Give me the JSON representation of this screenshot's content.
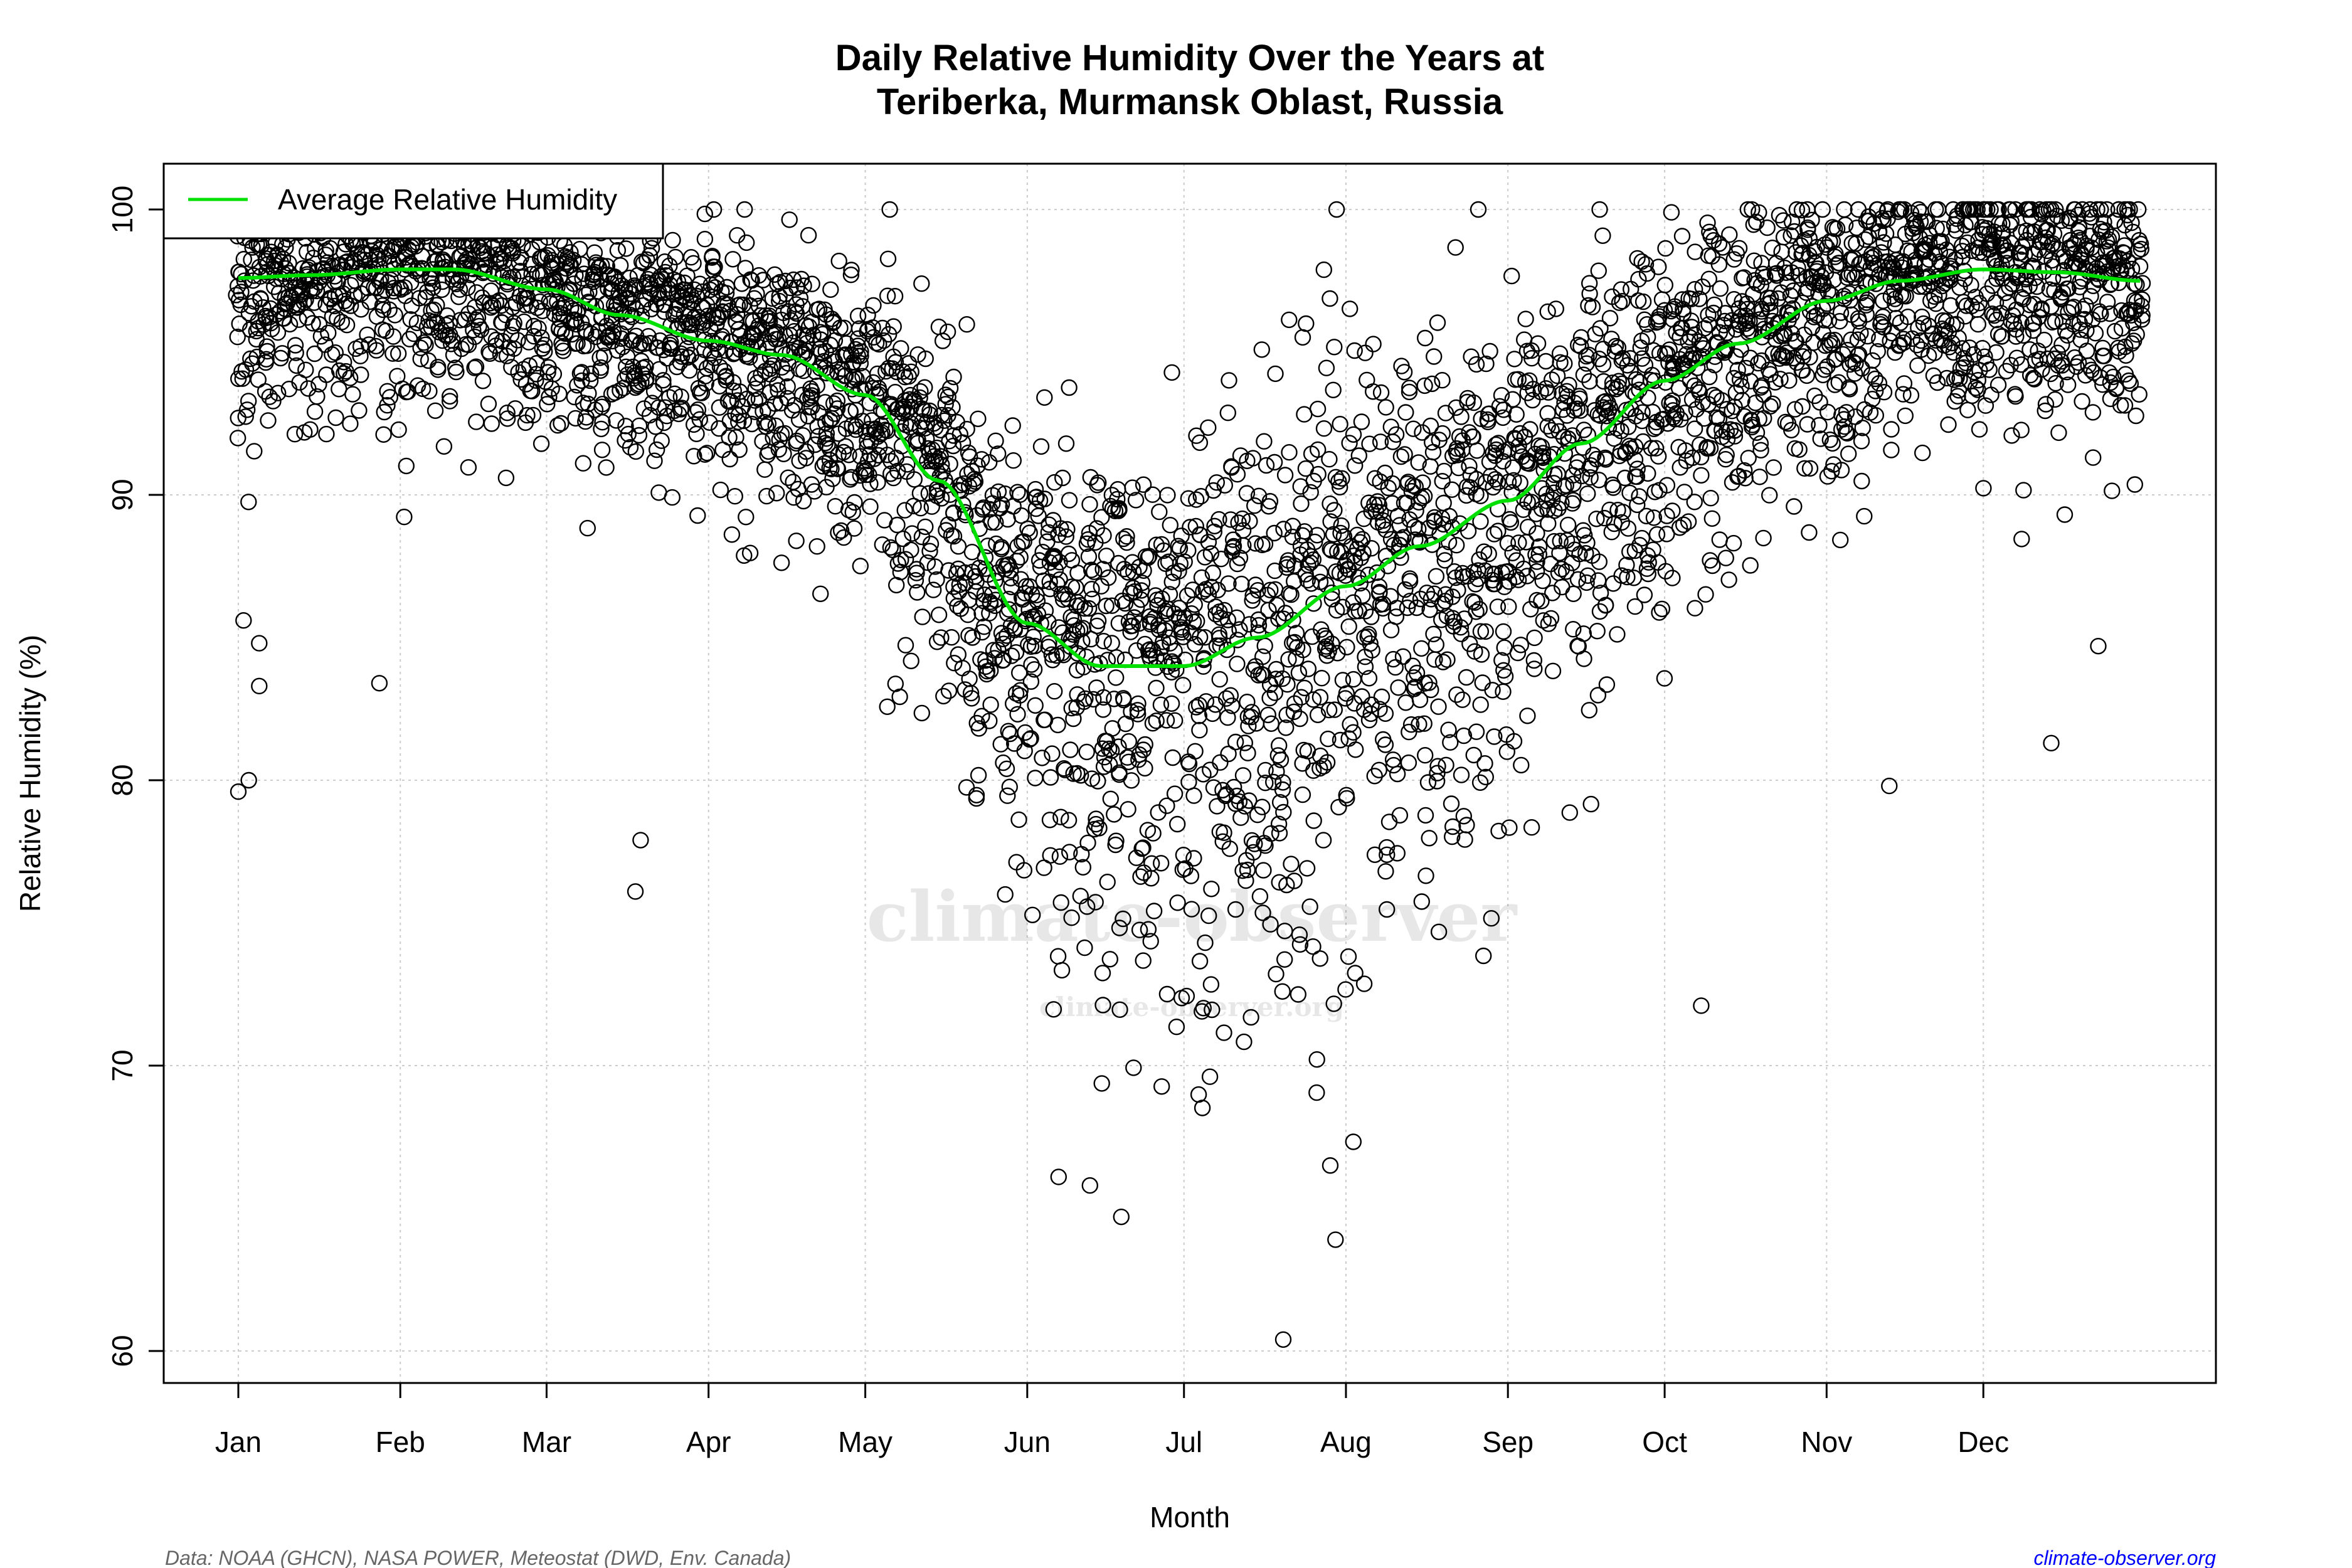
{
  "chart_data": {
    "type": "scatter",
    "title": [
      "Daily Relative Humidity Over the Years at",
      "Teriberka, Murmansk Oblast, Russia"
    ],
    "xlabel": "Month",
    "ylabel": "Relative Humidity  (%)",
    "ylim": [
      58.8,
      101
    ],
    "yticks": [
      60,
      70,
      80,
      90,
      100
    ],
    "xticks": [
      {
        "label": "Jan",
        "day": 1
      },
      {
        "label": "Feb",
        "day": 32
      },
      {
        "label": "Mar",
        "day": 60
      },
      {
        "label": "Apr",
        "day": 91
      },
      {
        "label": "May",
        "day": 121
      },
      {
        "label": "Jun",
        "day": 152
      },
      {
        "label": "Jul",
        "day": 182
      },
      {
        "label": "Aug",
        "day": 213
      },
      {
        "label": "Sep",
        "day": 244
      },
      {
        "label": "Oct",
        "day": 274
      },
      {
        "label": "Nov",
        "day": 305
      },
      {
        "label": "Dec",
        "day": 335
      }
    ],
    "grid": true,
    "legend": {
      "position": "top-left",
      "entries": [
        {
          "name": "Average Relative Humidity",
          "color": "#00e000"
        }
      ]
    },
    "average_series": {
      "name": "Average Relative Humidity",
      "color": "#00e000",
      "day": [
        1,
        15,
        32,
        42,
        60,
        74,
        91,
        105,
        121,
        135,
        152,
        166,
        182,
        196,
        213,
        227,
        244,
        258,
        274,
        288,
        305,
        319,
        335,
        349,
        365
      ],
      "value": [
        97.6,
        97.7,
        97.9,
        97.9,
        97.2,
        96.3,
        95.4,
        94.9,
        93.5,
        90.5,
        85.5,
        84.0,
        84.0,
        85.0,
        86.8,
        88.2,
        89.8,
        91.8,
        94.0,
        95.3,
        96.8,
        97.5,
        97.9,
        97.8,
        97.5
      ]
    },
    "scatter_series": {
      "marker": "open-circle",
      "color": "#000000",
      "typical_spread_by_month": [
        2.5,
        2.6,
        2.6,
        3.0,
        4.0,
        6.0,
        6.5,
        5.5,
        4.5,
        3.5,
        2.8,
        2.5
      ],
      "notable_points": [
        {
          "day": 1,
          "value": 79.6
        },
        {
          "day": 3,
          "value": 80.0
        },
        {
          "day": 2,
          "value": 85.6
        },
        {
          "day": 5,
          "value": 83.3
        },
        {
          "day": 5,
          "value": 84.8
        },
        {
          "day": 28,
          "value": 83.4
        },
        {
          "day": 77,
          "value": 76.1
        },
        {
          "day": 78,
          "value": 77.9
        },
        {
          "day": 170,
          "value": 64.7
        },
        {
          "day": 201,
          "value": 60.4
        },
        {
          "day": 211,
          "value": 63.9
        },
        {
          "day": 210,
          "value": 66.5
        },
        {
          "day": 158,
          "value": 66.1
        },
        {
          "day": 164,
          "value": 65.8
        },
        {
          "day": 281,
          "value": 72.1
        },
        {
          "day": 317,
          "value": 79.8
        },
        {
          "day": 348,
          "value": 81.3
        },
        {
          "day": 357,
          "value": 84.7
        }
      ]
    }
  },
  "footer": {
    "source": "Data: NOAA (GHCN), NASA POWER, Meteostat (DWD, Env. Canada)",
    "site": "climate-observer.org",
    "site_color": "#0000ff",
    "source_color": "#666666"
  },
  "watermark": {
    "main": "climate-observer",
    "sub": "climate-observer.org"
  }
}
